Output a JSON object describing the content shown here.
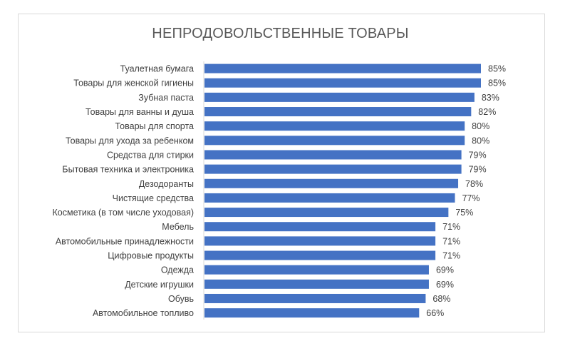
{
  "chart_data": {
    "type": "bar",
    "orientation": "horizontal",
    "title": "НЕПРОДОВОЛЬСТВЕННЫЕ ТОВАРЫ",
    "categories": [
      "Туалетная бумага",
      "Товары для женской гигиены",
      "Зубная паста",
      "Товары для ванны и душа",
      "Товары для спорта",
      "Товары для ухода за ребенком",
      "Средства для стирки",
      "Бытовая техника и электроника",
      "Дезодоранты",
      "Чистящие средства",
      "Косметика (в том числе уходовая)",
      "Мебель",
      "Автомобильные принадлежности",
      "Цифровые продукты",
      "Одежда",
      "Детские игрушки",
      "Обувь",
      "Автомобильное топливо"
    ],
    "values": [
      85,
      85,
      83,
      82,
      80,
      80,
      79,
      79,
      78,
      77,
      75,
      71,
      71,
      71,
      69,
      69,
      68,
      66
    ],
    "data_labels": [
      "85%",
      "85%",
      "83%",
      "82%",
      "80%",
      "80%",
      "79%",
      "79%",
      "78%",
      "77%",
      "75%",
      "71%",
      "71%",
      "71%",
      "69%",
      "69%",
      "68%",
      "66%"
    ],
    "xlim": [
      0,
      85
    ],
    "grid": false,
    "legend": "none",
    "bar_color": "#4472c4",
    "label_color": "#404040"
  }
}
